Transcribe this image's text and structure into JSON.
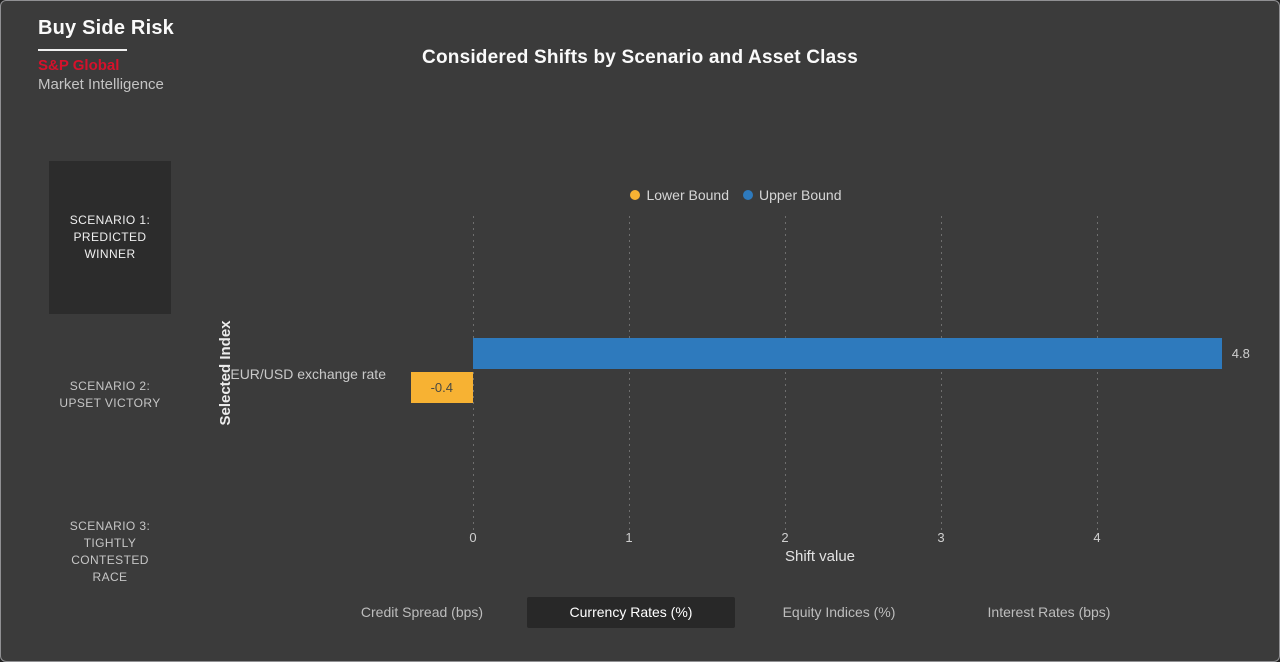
{
  "branding": {
    "app_title": "Buy Side Risk",
    "logo_top": "S&P Global",
    "logo_bottom": "Market Intelligence",
    "logo_color": "#d6112b"
  },
  "chart_title": "Considered Shifts by Scenario and Asset Class",
  "scenarios": [
    {
      "lines": [
        "SCENARIO 1:",
        "PREDICTED",
        "WINNER"
      ],
      "selected": true
    },
    {
      "lines": [
        "SCENARIO 2:",
        "UPSET VICTORY"
      ],
      "selected": false
    },
    {
      "lines": [
        "SCENARIO 3:",
        "TIGHTLY",
        "CONTESTED",
        "RACE"
      ],
      "selected": false
    }
  ],
  "tabs": [
    {
      "label": "Credit Spread (bps)",
      "selected": false
    },
    {
      "label": "Currency Rates (%)",
      "selected": true
    },
    {
      "label": "Equity Indices (%)",
      "selected": false
    },
    {
      "label": "Interest Rates (bps)",
      "selected": false
    }
  ],
  "chart_data": {
    "type": "bar",
    "orientation": "horizontal",
    "title": "Considered Shifts by Scenario and Asset Class",
    "categories": [
      "EUR/USD exchange rate"
    ],
    "series": [
      {
        "name": "Lower Bound",
        "color": "#f7b233",
        "values": [
          -0.4
        ]
      },
      {
        "name": "Upper Bound",
        "color": "#2e7abd",
        "values": [
          4.8
        ]
      }
    ],
    "xlabel": "Shift value",
    "ylabel": "Selected Index",
    "xticks": [
      0,
      1,
      2,
      3,
      4
    ],
    "xlim": [
      -0.45,
      4.85
    ],
    "grid": "vertical-dotted",
    "legend_position": "top-center"
  },
  "colors": {
    "background": "#3b3b3b",
    "scenario_selected_bg": "#2c2c2c",
    "tab_selected_bg": "#282828",
    "bar_label_dark": "#4a4a42",
    "text_light": "#fafafa",
    "text_muted": "#c6c6c6"
  }
}
